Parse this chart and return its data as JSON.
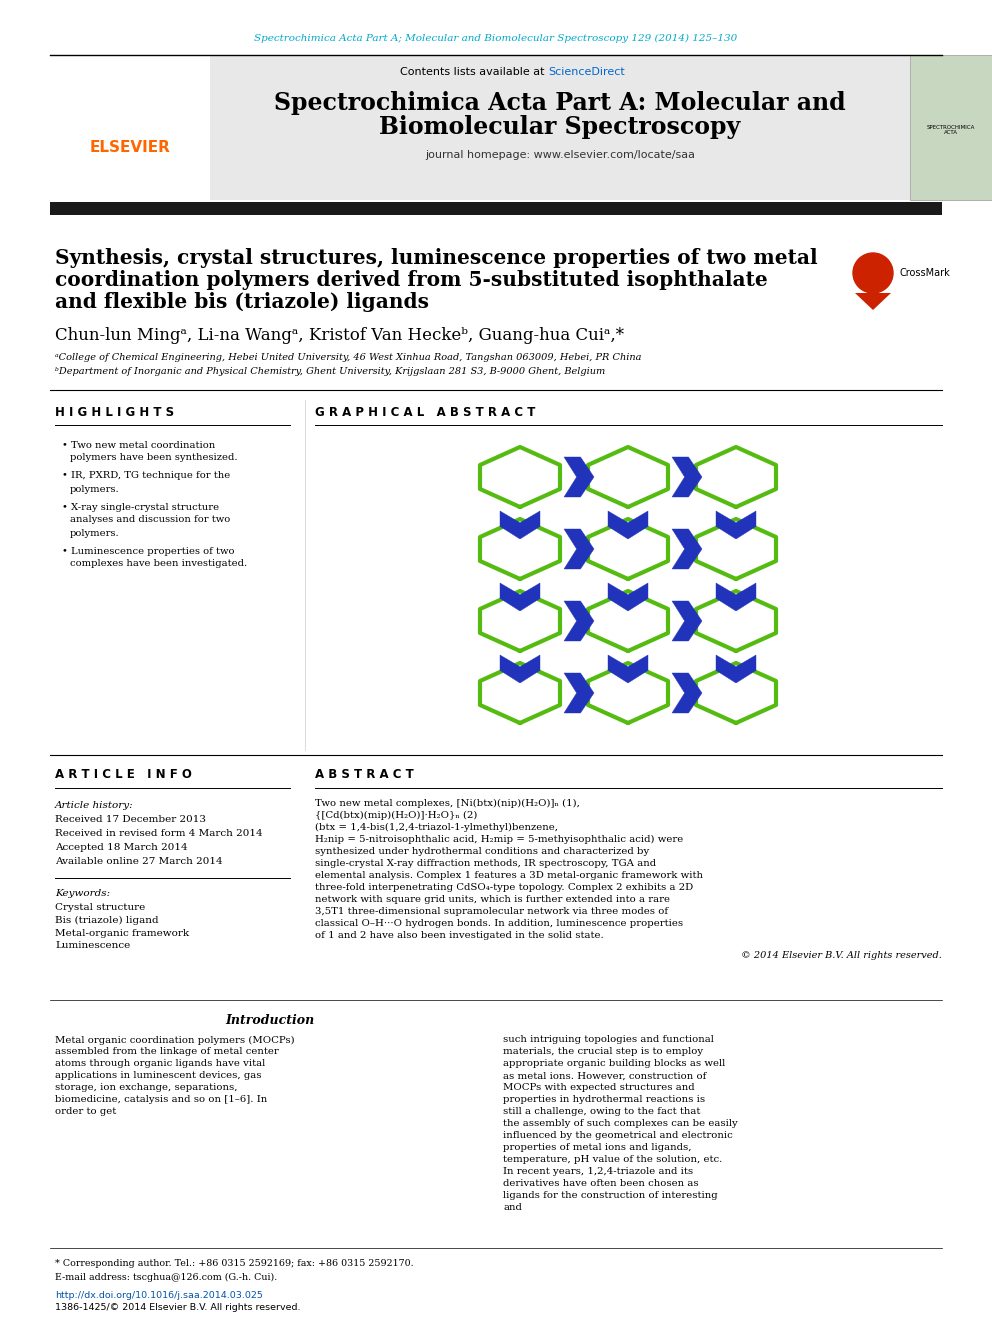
{
  "page_bg": "#ffffff",
  "top_journal_ref": "Spectrochimica Acta Part A; Molecular and Biomolecular Spectroscopy 129 (2014) 125–130",
  "top_journal_ref_color": "#00aacc",
  "header_bg": "#e8e8e8",
  "header_contents": "Contents lists available at",
  "header_sciencedirect": "ScienceDirect",
  "header_sciencedirect_color": "#0066cc",
  "journal_title_line1": "Spectrochimica Acta Part A: Molecular and",
  "journal_title_line2": "Biomolecular Spectroscopy",
  "journal_homepage": "journal homepage: www.elsevier.com/locate/saa",
  "thick_bar_color": "#1a1a1a",
  "article_title_line1": "Synthesis, crystal structures, luminescence properties of two metal",
  "article_title_line2": "coordination polymers derived from 5-substituted isophthalate",
  "article_title_line3": "and flexible bis (triazole) ligands",
  "authors_full": "Chun-lun Mingᵃ, Li-na Wangᵃ, Kristof Van Heckeᵇ, Guang-hua Cuiᵃ,*",
  "affil_a": "ᵃCollege of Chemical Engineering, Hebei United University, 46 West Xinhua Road, Tangshan 063009, Hebei, PR China",
  "affil_b": "ᵇDepartment of Inorganic and Physical Chemistry, Ghent University, Krijgslaan 281 S3, B-9000 Ghent, Belgium",
  "highlights_title": "H I G H L I G H T S",
  "highlights": [
    "Two new metal coordination polymers have been synthesized.",
    "IR, PXRD, TG technique for the polymers.",
    "X-ray single-crystal structure analyses and discussion for two polymers.",
    "Luminescence properties of two complexes have been investigated."
  ],
  "graphical_abstract_title": "G R A P H I C A L   A B S T R A C T",
  "article_info_title": "A R T I C L E   I N F O",
  "article_history_label": "Article history:",
  "received": "Received 17 December 2013",
  "revised": "Received in revised form 4 March 2014",
  "accepted": "Accepted 18 March 2014",
  "available": "Available online 27 March 2014",
  "keywords_title": "Keywords:",
  "keywords": [
    "Crystal structure",
    "Bis (triazole) ligand",
    "Metal-organic framework",
    "Luminescence"
  ],
  "abstract_title": "A B S T R A C T",
  "abstract_text": "Two new metal complexes, [Ni(btx)(nip)(H₂O)]ₙ (1), {[Cd(btx)(mip)(H₂O)]·H₂O}ₙ (2) (btx = 1,4-bis(1,2,4-triazol-1-ylmethyl)benzene, H₂nip = 5-nitroisophthalic acid, H₂mip = 5-methyisophthalic acid) were synthesized under hydrothermal conditions and characterized by single-crystal X-ray diffraction methods, IR spectroscopy, TGA and elemental analysis. Complex 1 features a 3D metal-organic framework with three-fold interpenetrating CdSO₄-type topology. Complex 2 exhibits a 2D network with square grid units, which is further extended into a rare 3,5T1 three-dimensional supramolecular network via three modes of classical O–H···O hydrogen bonds. In addition, luminescence properties of 1 and 2 have also been investigated in the solid state.",
  "copyright": "© 2014 Elsevier B.V. All rights reserved.",
  "intro_title": "Introduction",
  "intro_text1": "Metal organic coordination polymers (MOCPs) assembled from the linkage of metal center atoms through organic ligands have vital applications in luminescent devices, gas storage, ion exchange, separations, biomedicine, catalysis and so on [1–6]. In order to get",
  "intro_text2": "such intriguing topologies and functional materials, the crucial step is to employ appropriate organic building blocks as well as metal ions. However, construction of MOCPs with expected structures and properties in hydrothermal reactions is still a challenge, owing to the fact that the assembly of such complexes can be easily influenced by the geometrical and electronic properties of metal ions and ligands, temperature, pH value of the solution, etc. In recent years, 1,2,4-triazole and its derivatives have often been chosen as ligands for the construction of interesting and",
  "footnote_corr": "* Corresponding author. Tel.: +86 0315 2592169; fax: +86 0315 2592170.",
  "footnote_email": "E-mail address: tscghua@126.com (G.-h. Cui).",
  "doi_text": "http://dx.doi.org/10.1016/j.saa.2014.03.025",
  "issn_text": "1386-1425/© 2014 Elsevier B.V. All rights reserved.",
  "green_color": "#55bb11",
  "blue_color": "#2233bb"
}
